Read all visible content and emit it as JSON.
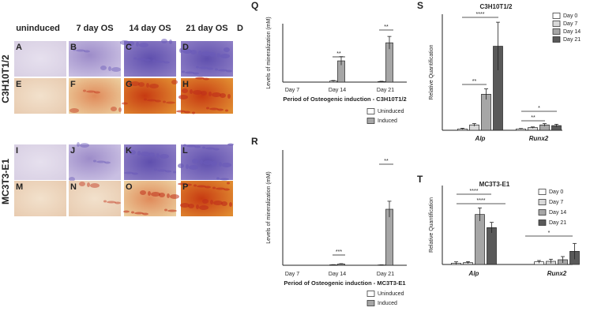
{
  "figure": {
    "column_headers": [
      "uninduced",
      "7 day OS",
      "14 day OS",
      "21 day OS",
      "D"
    ],
    "row_labels": [
      "C3H10T1/2",
      "MC3T3-E1"
    ],
    "panel_letters": [
      "A",
      "B",
      "C",
      "D",
      "E",
      "F",
      "G",
      "H",
      "I",
      "J",
      "K",
      "L",
      "M",
      "N",
      "O",
      "P"
    ]
  },
  "chart_data": [
    {
      "type": "bar",
      "panel": "Q",
      "ylabel": "Levels of mineralization (mM)",
      "xlabel": "Period of Osteogenic induction - C3H10T1/2",
      "categories": [
        "Day 7",
        "Day 14",
        "Day 21"
      ],
      "series": [
        {
          "name": "Uninduced",
          "color": "#ffffff",
          "values": [
            0,
            0.1,
            0.05
          ],
          "errors": [
            0,
            0.05,
            0.03
          ]
        },
        {
          "name": "Induced",
          "color": "#a6a6a6",
          "values": [
            0,
            2.0,
            3.7
          ],
          "errors": [
            0,
            0.4,
            0.6
          ]
        }
      ],
      "ylim": [
        0,
        5.5
      ],
      "annotations": [
        "**",
        "**"
      ]
    },
    {
      "type": "bar",
      "panel": "R",
      "ylabel": "Levels of mineralization (mM)",
      "xlabel": "Period of Osteogenic induction - MC3T3-E1",
      "categories": [
        "Day 7",
        "Day 14",
        "Day 21"
      ],
      "series": [
        {
          "name": "Uninduced",
          "color": "#ffffff",
          "values": [
            0,
            0.03,
            0.02
          ],
          "errors": [
            0,
            0.01,
            0.01
          ]
        },
        {
          "name": "Induced",
          "color": "#a6a6a6",
          "values": [
            0,
            0.08,
            3.5
          ],
          "errors": [
            0,
            0.02,
            0.5
          ]
        }
      ],
      "ylim": [
        0,
        7.2
      ],
      "annotations": [
        "***",
        "**"
      ]
    },
    {
      "type": "bar",
      "panel": "S",
      "title": "C3H10T1/2",
      "ylabel": "Relative Quantification",
      "categories": [
        "Alp",
        "Runx2"
      ],
      "series": [
        {
          "name": "Day 0",
          "color": "#ffffff",
          "values": [
            1,
            1
          ],
          "errors": [
            0.5,
            0.3
          ]
        },
        {
          "name": "Day 7",
          "color": "#d9d9d9",
          "values": [
            4,
            2
          ],
          "errors": [
            1,
            0.5
          ]
        },
        {
          "name": "Day 14",
          "color": "#a6a6a6",
          "values": [
            27,
            4
          ],
          "errors": [
            4,
            1
          ]
        },
        {
          "name": "Day 21",
          "color": "#595959",
          "values": [
            63,
            3.5
          ],
          "errors": [
            18,
            1
          ]
        }
      ],
      "ylim": [
        0,
        87
      ],
      "annotations": [
        "****",
        "**",
        "*",
        "**"
      ]
    },
    {
      "type": "bar",
      "panel": "T",
      "title": "MC3T3-E1",
      "ylabel": "Relative Quantification",
      "categories": [
        "Alp",
        "Runx2"
      ],
      "series": [
        {
          "name": "Day 0",
          "color": "#ffffff",
          "values": [
            0.5,
            1
          ],
          "errors": [
            0.5,
            0.5
          ]
        },
        {
          "name": "Day 7",
          "color": "#d9d9d9",
          "values": [
            0.7,
            1.2
          ],
          "errors": [
            0.4,
            0.8
          ]
        },
        {
          "name": "Day 14",
          "color": "#a6a6a6",
          "values": [
            19,
            1.8
          ],
          "errors": [
            2.5,
            1.2
          ]
        },
        {
          "name": "Day 21",
          "color": "#595959",
          "values": [
            14,
            5
          ],
          "errors": [
            2,
            3
          ]
        }
      ],
      "ylim": [
        0,
        30
      ],
      "annotations": [
        "****",
        "****",
        "*"
      ]
    }
  ]
}
